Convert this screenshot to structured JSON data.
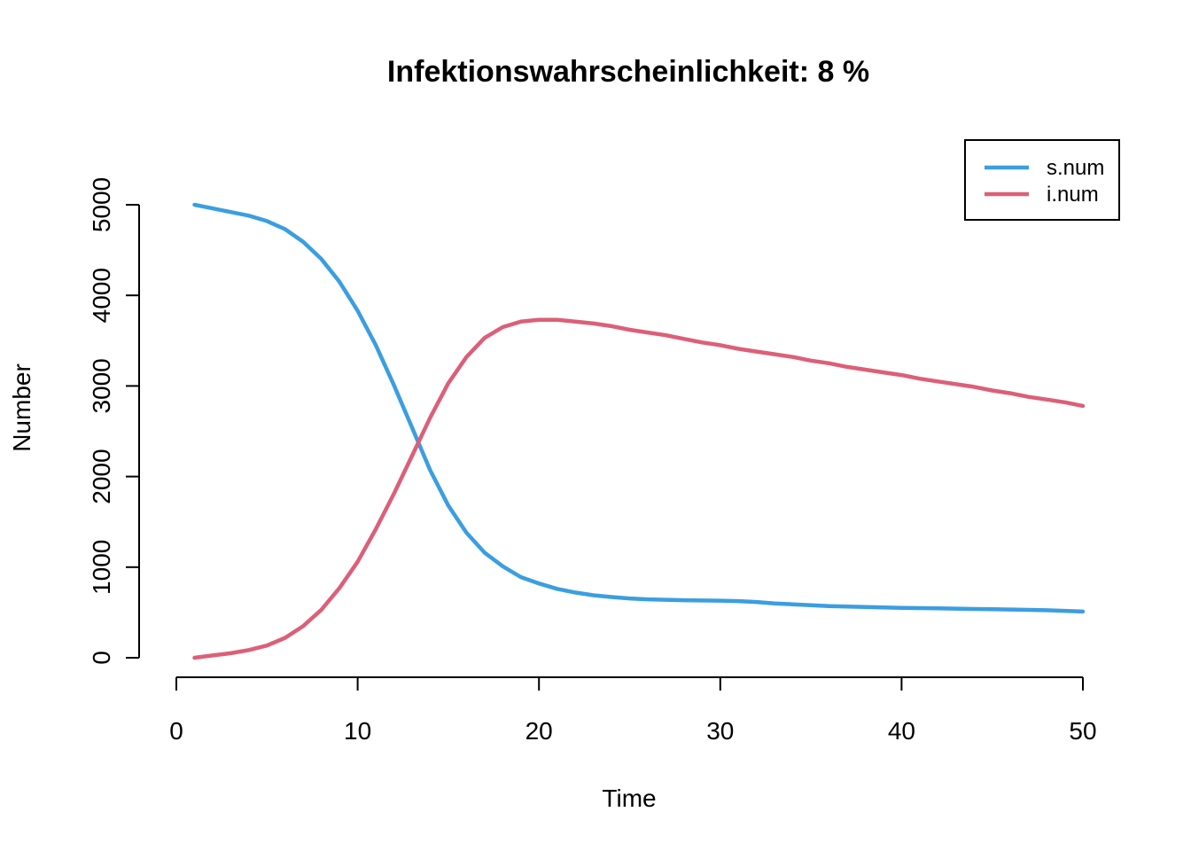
{
  "chart_data": {
    "type": "line",
    "title": "Infektionswahrscheinlichkeit:  8  %",
    "xlabel": "Time",
    "ylabel": "Number",
    "xlim": [
      0,
      50
    ],
    "ylim": [
      0,
      5000
    ],
    "xticks": [
      "0",
      "10",
      "20",
      "30",
      "40",
      "50"
    ],
    "yticks": [
      "0",
      "1000",
      "2000",
      "3000",
      "4000",
      "5000"
    ],
    "grid": false,
    "legend_position": "top-right",
    "x": [
      1,
      2,
      3,
      4,
      5,
      6,
      7,
      8,
      9,
      10,
      11,
      12,
      13,
      14,
      15,
      16,
      17,
      18,
      19,
      20,
      21,
      22,
      23,
      24,
      25,
      26,
      27,
      28,
      29,
      30,
      31,
      32,
      33,
      34,
      35,
      36,
      37,
      38,
      39,
      40,
      41,
      42,
      43,
      44,
      45,
      46,
      47,
      48,
      49,
      50
    ],
    "series": [
      {
        "name": "s.num",
        "color": "#3b9ee0",
        "values": [
          5000,
          4960,
          4920,
          4880,
          4820,
          4730,
          4590,
          4400,
          4150,
          3830,
          3450,
          3010,
          2540,
          2070,
          1680,
          1380,
          1160,
          1010,
          890,
          820,
          760,
          720,
          690,
          670,
          655,
          645,
          640,
          635,
          632,
          630,
          625,
          615,
          600,
          590,
          580,
          570,
          565,
          560,
          555,
          550,
          548,
          545,
          542,
          538,
          535,
          532,
          528,
          524,
          518,
          510
        ]
      },
      {
        "name": "i.num",
        "color": "#dc5f78",
        "values": [
          0,
          25,
          50,
          85,
          135,
          220,
          350,
          530,
          770,
          1060,
          1420,
          1810,
          2230,
          2650,
          3030,
          3320,
          3530,
          3650,
          3710,
          3730,
          3730,
          3710,
          3690,
          3660,
          3620,
          3590,
          3560,
          3520,
          3480,
          3450,
          3410,
          3380,
          3350,
          3320,
          3280,
          3250,
          3210,
          3180,
          3150,
          3120,
          3080,
          3050,
          3020,
          2990,
          2950,
          2920,
          2880,
          2850,
          2820,
          2780
        ]
      }
    ]
  }
}
